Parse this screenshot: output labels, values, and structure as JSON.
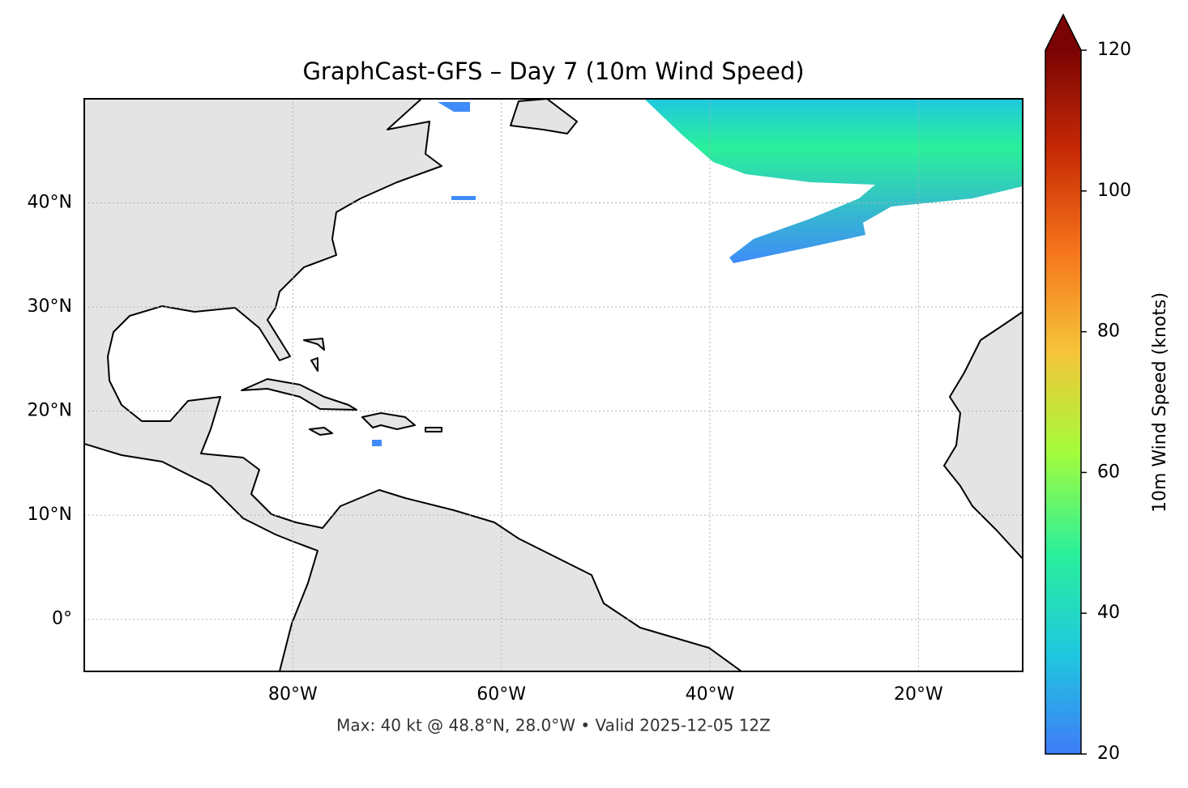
{
  "title": "GraphCast-GFS – Day 7 (10m Wind Speed)",
  "caption": "Max: 40 kt @ 48.8°N, 28.0°W • Valid 2025-12-05 12Z",
  "map": {
    "xlim": [
      -100,
      -10
    ],
    "ylim": [
      -5,
      50
    ],
    "xticks": [
      {
        "value": -80,
        "label": "80°W"
      },
      {
        "value": -60,
        "label": "60°W"
      },
      {
        "value": -40,
        "label": "40°W"
      },
      {
        "value": -20,
        "label": "20°W"
      }
    ],
    "yticks": [
      {
        "value": 0,
        "label": "0°"
      },
      {
        "value": 10,
        "label": "10°N"
      },
      {
        "value": 20,
        "label": "20°N"
      },
      {
        "value": 30,
        "label": "30°N"
      },
      {
        "value": 40,
        "label": "40°N"
      }
    ],
    "grid": true
  },
  "colorbar": {
    "label": "10m Wind Speed (knots)",
    "lim": [
      20,
      120
    ],
    "ticks": [
      20,
      40,
      60,
      80,
      100,
      120
    ],
    "colors": [
      "#3f7cf8",
      "#1fc8de",
      "#2af09a",
      "#a4fc3b",
      "#f5c43a",
      "#f6751c",
      "#c72a04",
      "#7a0403"
    ]
  }
}
